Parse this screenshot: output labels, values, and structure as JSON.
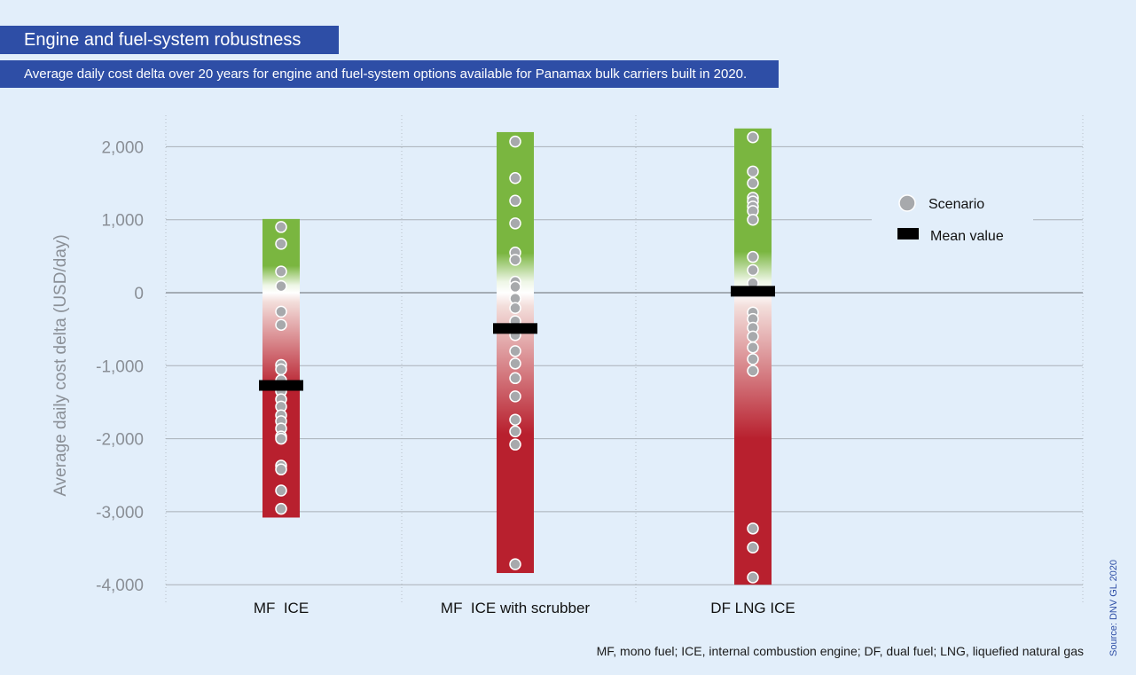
{
  "header": {
    "title": "Engine and fuel-system robustness",
    "subtitle": "Average daily cost delta over 20 years for engine and fuel-system options available for Panamax bulk carriers built in 2020."
  },
  "footnote": "MF, mono fuel; ICE, internal combustion engine; DF, dual fuel; LNG, liquefied natural gas",
  "source": "Source: DNV GL 2020",
  "colors": {
    "header_bg": "#2e4ea6",
    "background": "#e2eefa",
    "positive": "#7ab640",
    "negative": "#b8202e",
    "neutral": "#ffffff",
    "scenario_dot": "#a7a9ac",
    "mean_marker": "#000000"
  },
  "chart_data": {
    "type": "scatter",
    "ylabel": "Average daily cost delta (USD/day)",
    "xlabel": "",
    "ylim": [
      -4000,
      2200
    ],
    "yticks": [
      2000,
      1000,
      0,
      -1000,
      -2000,
      -3000,
      -4000
    ],
    "ytick_labels": [
      "2,000",
      "1,000",
      "0",
      "-1,000",
      "-2,000",
      "-3,000",
      "-4,000"
    ],
    "categories": [
      "MF  ICE",
      "MF  ICE with scrubber",
      "DF LNG ICE"
    ],
    "legend": {
      "scenario": "Scenario",
      "mean": "Mean value",
      "position": "right"
    },
    "grid": true,
    "series": [
      {
        "category": "MF  ICE",
        "range": [
          -3080,
          1010
        ],
        "mean": -1270,
        "scenarios": [
          900,
          670,
          290,
          90,
          -260,
          -440,
          -990,
          -1050,
          -1200,
          -1280,
          -1350,
          -1460,
          -1560,
          -1680,
          -1760,
          -1860,
          -1970,
          -2000,
          -2370,
          -2420,
          -2710,
          -2960
        ]
      },
      {
        "category": "MF  ICE with scrubber",
        "range": [
          -3840,
          2200
        ],
        "mean": -490,
        "scenarios": [
          2070,
          1570,
          1260,
          950,
          550,
          450,
          150,
          80,
          -80,
          -210,
          -390,
          -580,
          -800,
          -970,
          -1170,
          -1420,
          -1740,
          -1900,
          -2080,
          -3720
        ]
      },
      {
        "category": "DF LNG ICE",
        "range": [
          -4000,
          2250
        ],
        "mean": 20,
        "scenarios": [
          2130,
          1660,
          1500,
          1300,
          1250,
          1180,
          1120,
          1000,
          490,
          310,
          130,
          -270,
          -360,
          -480,
          -600,
          -750,
          -910,
          -1070,
          -3230,
          -3490,
          -3900
        ]
      }
    ]
  }
}
